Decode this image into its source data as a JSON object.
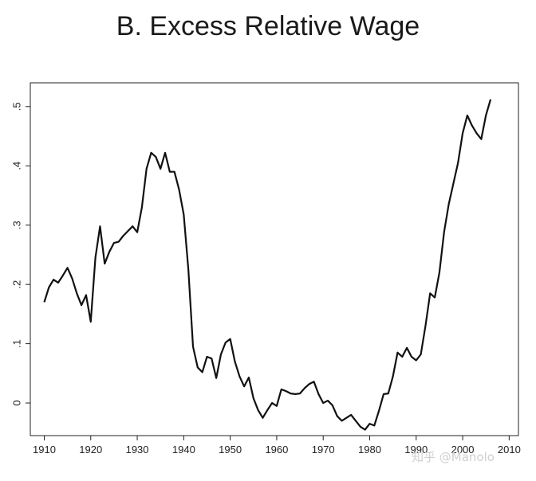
{
  "chart_data": {
    "type": "line",
    "title": "B. Excess Relative Wage",
    "xlabel": "",
    "ylabel": "",
    "xlim": [
      1907,
      2012
    ],
    "ylim": [
      -0.055,
      0.54
    ],
    "x_ticks": [
      "1910",
      "1920",
      "1930",
      "1940",
      "1950",
      "1960",
      "1970",
      "1980",
      "1990",
      "2000",
      "2010"
    ],
    "y_ticks": [
      "0",
      ".1",
      ".2",
      ".3",
      ".4",
      ".5"
    ],
    "grid": false,
    "series": [
      {
        "points": [
          [
            1910,
            0.17
          ],
          [
            1911,
            0.195
          ],
          [
            1912,
            0.208
          ],
          [
            1913,
            0.203
          ],
          [
            1914,
            0.215
          ],
          [
            1915,
            0.228
          ],
          [
            1916,
            0.21
          ],
          [
            1917,
            0.185
          ],
          [
            1918,
            0.165
          ],
          [
            1919,
            0.182
          ],
          [
            1920,
            0.137
          ],
          [
            1921,
            0.245
          ],
          [
            1922,
            0.298
          ],
          [
            1923,
            0.235
          ],
          [
            1924,
            0.255
          ],
          [
            1925,
            0.27
          ],
          [
            1926,
            0.272
          ],
          [
            1927,
            0.282
          ],
          [
            1928,
            0.29
          ],
          [
            1929,
            0.298
          ],
          [
            1930,
            0.288
          ],
          [
            1931,
            0.33
          ],
          [
            1932,
            0.395
          ],
          [
            1933,
            0.422
          ],
          [
            1934,
            0.415
          ],
          [
            1935,
            0.395
          ],
          [
            1936,
            0.422
          ],
          [
            1937,
            0.39
          ],
          [
            1938,
            0.39
          ],
          [
            1939,
            0.36
          ],
          [
            1940,
            0.318
          ],
          [
            1941,
            0.225
          ],
          [
            1942,
            0.095
          ],
          [
            1943,
            0.06
          ],
          [
            1944,
            0.052
          ],
          [
            1945,
            0.078
          ],
          [
            1946,
            0.075
          ],
          [
            1947,
            0.042
          ],
          [
            1948,
            0.082
          ],
          [
            1949,
            0.102
          ],
          [
            1950,
            0.108
          ],
          [
            1951,
            0.07
          ],
          [
            1952,
            0.045
          ],
          [
            1953,
            0.028
          ],
          [
            1954,
            0.043
          ],
          [
            1955,
            0.008
          ],
          [
            1956,
            -0.012
          ],
          [
            1957,
            -0.025
          ],
          [
            1958,
            -0.012
          ],
          [
            1959,
            0.0
          ],
          [
            1960,
            -0.005
          ],
          [
            1961,
            0.023
          ],
          [
            1962,
            0.02
          ],
          [
            1963,
            0.016
          ],
          [
            1964,
            0.015
          ],
          [
            1965,
            0.016
          ],
          [
            1966,
            0.025
          ],
          [
            1967,
            0.032
          ],
          [
            1968,
            0.036
          ],
          [
            1969,
            0.015
          ],
          [
            1970,
            0.0
          ],
          [
            1971,
            0.004
          ],
          [
            1972,
            -0.004
          ],
          [
            1973,
            -0.022
          ],
          [
            1974,
            -0.03
          ],
          [
            1975,
            -0.025
          ],
          [
            1976,
            -0.02
          ],
          [
            1977,
            -0.03
          ],
          [
            1978,
            -0.04
          ],
          [
            1979,
            -0.045
          ],
          [
            1980,
            -0.035
          ],
          [
            1981,
            -0.038
          ],
          [
            1982,
            -0.013
          ],
          [
            1983,
            0.015
          ],
          [
            1984,
            0.016
          ],
          [
            1985,
            0.045
          ],
          [
            1986,
            0.085
          ],
          [
            1987,
            0.078
          ],
          [
            1988,
            0.093
          ],
          [
            1989,
            0.078
          ],
          [
            1990,
            0.072
          ],
          [
            1991,
            0.082
          ],
          [
            1992,
            0.13
          ],
          [
            1993,
            0.185
          ],
          [
            1994,
            0.178
          ],
          [
            1995,
            0.22
          ],
          [
            1996,
            0.288
          ],
          [
            1997,
            0.335
          ],
          [
            1998,
            0.37
          ],
          [
            1999,
            0.405
          ],
          [
            2000,
            0.455
          ],
          [
            2001,
            0.485
          ],
          [
            2002,
            0.468
          ],
          [
            2003,
            0.455
          ],
          [
            2004,
            0.445
          ],
          [
            2005,
            0.485
          ],
          [
            2006,
            0.512
          ]
        ]
      }
    ]
  },
  "colors": {
    "line": "#111111",
    "axis": "#222222",
    "background": "#ffffff"
  },
  "watermark": "知乎 @Manolo"
}
